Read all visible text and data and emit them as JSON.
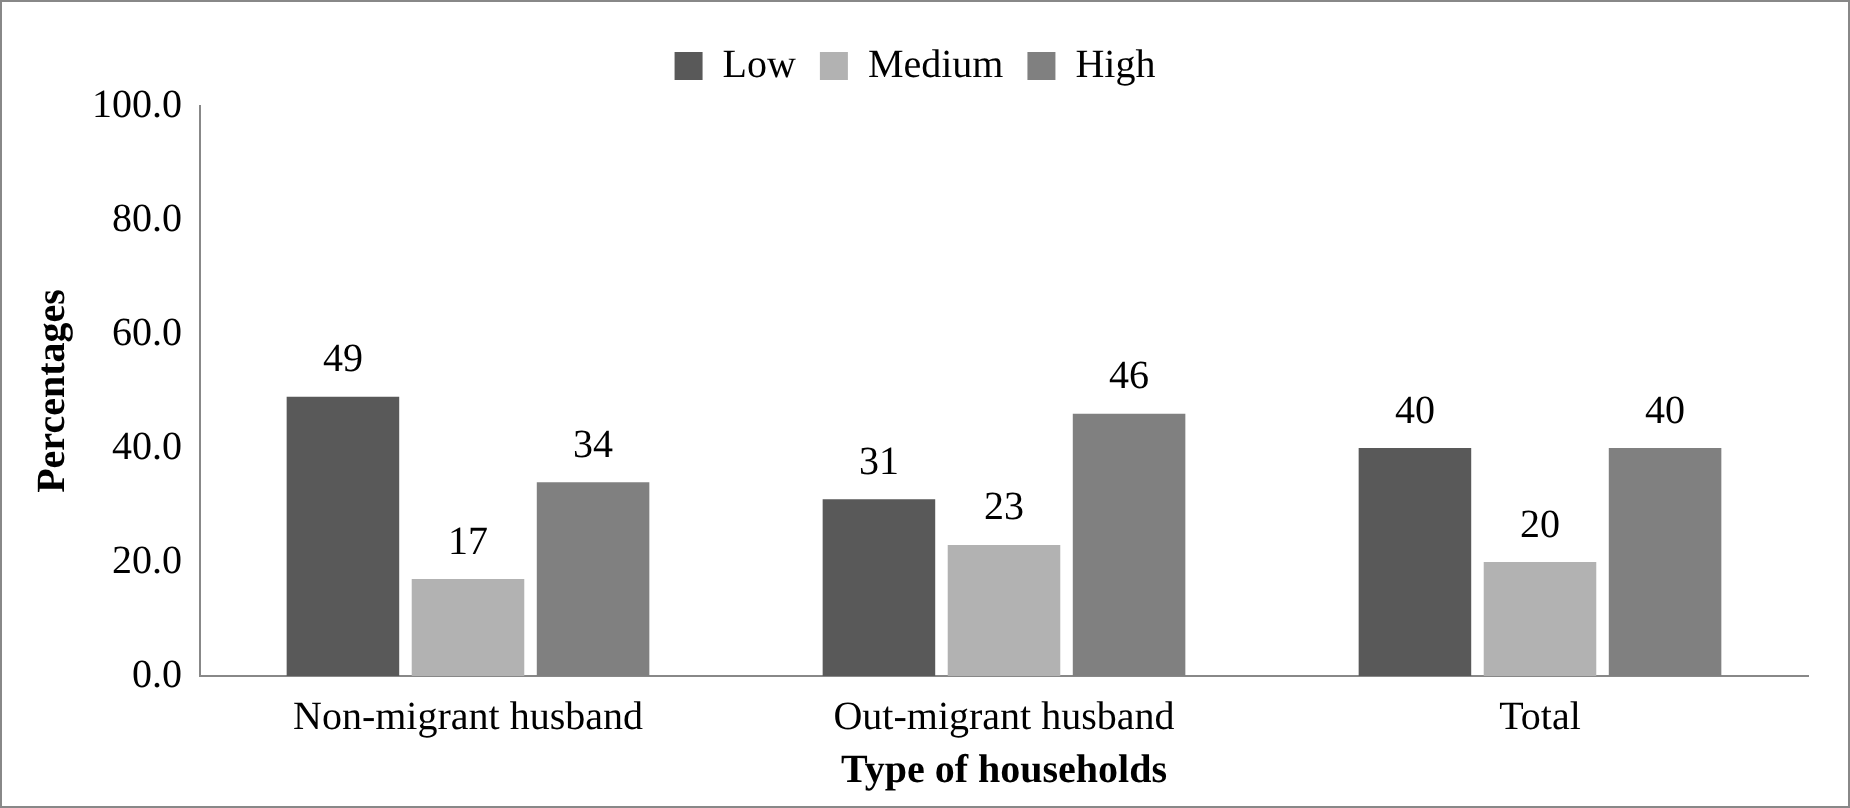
{
  "chart_data": {
    "type": "bar",
    "xlabel": "Type of households",
    "ylabel": "Percentages",
    "categories": [
      "Non-migrant husband",
      "Out-migrant husband",
      "Total"
    ],
    "series": [
      {
        "name": "Low",
        "color": "#595959",
        "values": [
          49,
          31,
          40
        ]
      },
      {
        "name": "Medium",
        "color": "#b2b2b2",
        "values": [
          17,
          23,
          20
        ]
      },
      {
        "name": "High",
        "color": "#808080",
        "values": [
          34,
          46,
          40
        ]
      }
    ],
    "ylim": [
      0,
      100
    ],
    "yticks": [
      {
        "value": 0,
        "label": "0.0"
      },
      {
        "value": 20,
        "label": "20.0"
      },
      {
        "value": 40,
        "label": "40.0"
      },
      {
        "value": 60,
        "label": "60.0"
      },
      {
        "value": 80,
        "label": "80.0"
      },
      {
        "value": 100,
        "label": "100.0"
      }
    ],
    "grid": false,
    "legend": "top",
    "data_labels": true
  }
}
